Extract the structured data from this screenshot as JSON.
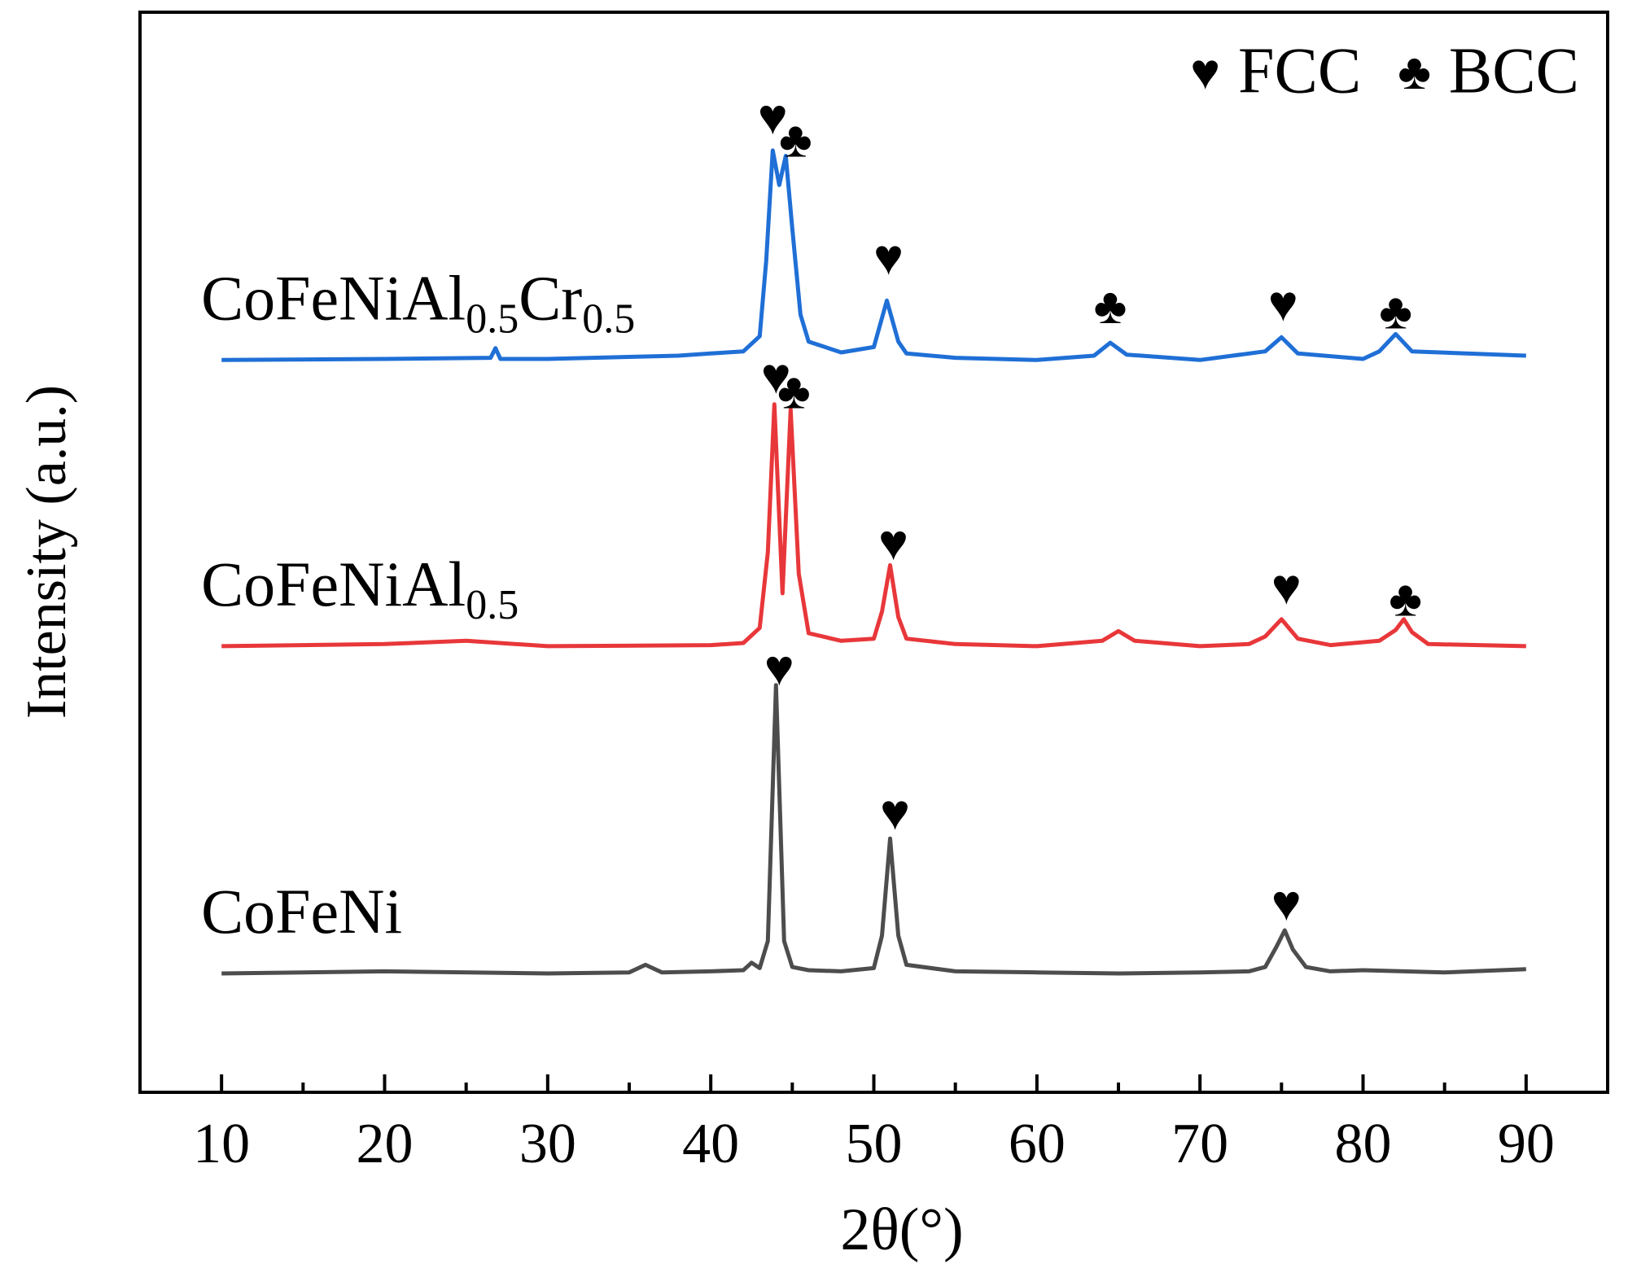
{
  "chart_data": {
    "type": "line",
    "xlabel": "2θ(°)",
    "ylabel": "Intensity (a.u.)",
    "xlim": [
      5,
      95
    ],
    "xticks": [
      10,
      20,
      30,
      40,
      50,
      60,
      70,
      80,
      90
    ],
    "xminorticks": [
      15,
      25,
      35,
      45,
      55,
      65,
      75,
      85
    ],
    "ylim": [
      0,
      100
    ],
    "legend_position": "upper right",
    "legend": [
      {
        "symbol": "♥",
        "label": "FCC"
      },
      {
        "symbol": "♣",
        "label": "BCC"
      }
    ],
    "series": [
      {
        "name": "CoFeNi",
        "color": "#4d4d4d",
        "x": [
          10,
          20,
          30,
          35,
          36,
          37,
          40,
          42,
          42.5,
          43,
          43.5,
          44,
          44.5,
          45,
          46,
          48,
          50,
          50.5,
          51,
          51.5,
          52,
          55,
          60,
          65,
          70,
          73,
          74,
          74.7,
          75.2,
          75.7,
          76.5,
          78,
          80,
          85,
          90
        ],
        "values": [
          11,
          11.2,
          11,
          11.1,
          11.8,
          11.1,
          11.2,
          11.3,
          12,
          11.5,
          14,
          37.7,
          14,
          11.6,
          11.3,
          11.2,
          11.5,
          14.5,
          23.5,
          14.5,
          11.8,
          11.2,
          11.1,
          11,
          11.1,
          11.2,
          11.6,
          13.5,
          15,
          13.2,
          11.6,
          11.2,
          11.3,
          11.1,
          11.4
        ]
      },
      {
        "name": "CoFeNiAl0.5",
        "color": "#e8373a",
        "x": [
          10,
          20,
          25,
          30,
          40,
          42,
          43,
          43.5,
          43.9,
          44.4,
          44.9,
          45.4,
          46,
          48,
          50,
          50.5,
          51,
          51.5,
          52,
          55,
          60,
          64,
          65,
          66,
          70,
          73,
          74,
          75,
          76,
          78,
          81,
          82,
          82.5,
          83,
          84,
          90
        ],
        "values": [
          41.3,
          41.5,
          41.8,
          41.3,
          41.4,
          41.6,
          43,
          50,
          63.7,
          46.2,
          63.2,
          48,
          42.5,
          41.8,
          42,
          44.5,
          48.8,
          44,
          42,
          41.5,
          41.3,
          41.8,
          42.7,
          41.8,
          41.3,
          41.5,
          42.2,
          43.8,
          42,
          41.4,
          41.8,
          42.8,
          43.8,
          42.6,
          41.5,
          41.3
        ]
      },
      {
        "name": "CoFeNiAl0.5Cr0.5",
        "color": "#1f6fd6",
        "x": [
          10,
          20,
          26.5,
          26.8,
          27.1,
          30,
          38,
          40,
          42,
          43,
          43.4,
          43.8,
          44.2,
          44.6,
          45,
          45.5,
          46,
          48,
          50,
          50.8,
          51.5,
          52,
          55,
          60,
          63.5,
          64.5,
          65.5,
          70,
          74,
          75,
          76,
          80,
          81,
          82,
          83,
          90
        ],
        "values": [
          67.8,
          67.9,
          68,
          68.9,
          67.9,
          67.9,
          68.2,
          68.4,
          68.6,
          70,
          77,
          87.2,
          84,
          86.7,
          80,
          72,
          69.5,
          68.5,
          69,
          73.3,
          69.5,
          68.4,
          68,
          67.8,
          68.2,
          69.4,
          68.3,
          67.8,
          68.6,
          69.9,
          68.4,
          67.9,
          68.6,
          70.2,
          68.6,
          68.2
        ]
      }
    ],
    "annotations": [
      {
        "text": "♥",
        "x": 43.8,
        "y": 89.8
      },
      {
        "text": "♣",
        "x": 45.2,
        "y": 87.7
      },
      {
        "text": "♥",
        "x": 50.9,
        "y": 76.8
      },
      {
        "text": "♣",
        "x": 64.5,
        "y": 72.3
      },
      {
        "text": "♥",
        "x": 75.1,
        "y": 72.5
      },
      {
        "text": "♣",
        "x": 82,
        "y": 71.8
      },
      {
        "text": "♥",
        "x": 44,
        "y": 65.8
      },
      {
        "text": "♣",
        "x": 45.1,
        "y": 64.4
      },
      {
        "text": "♥",
        "x": 51.2,
        "y": 50.4
      },
      {
        "text": "♥",
        "x": 75.3,
        "y": 46.3
      },
      {
        "text": "♣",
        "x": 82.6,
        "y": 45.2
      },
      {
        "text": "♥",
        "x": 44.2,
        "y": 38.8
      },
      {
        "text": "♥",
        "x": 51.3,
        "y": 25.4
      },
      {
        "text": "♥",
        "x": 75.3,
        "y": 17
      }
    ]
  }
}
